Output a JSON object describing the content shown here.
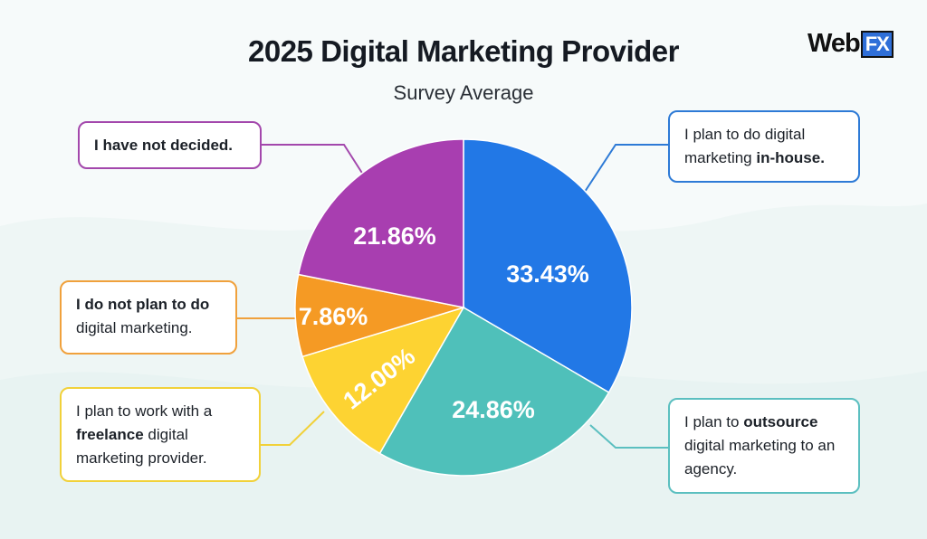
{
  "title": "2025 Digital Marketing Provider",
  "subtitle": "Survey Average",
  "logo": {
    "text_web": "Web",
    "text_fx": "FX"
  },
  "colors": {
    "background": "#f6fafa",
    "title": "#151a22"
  },
  "chart_data": {
    "type": "pie",
    "title": "2025 Digital Marketing Provider",
    "subtitle": "Survey Average",
    "slices": [
      {
        "label": "I plan to do digital marketing in-house.",
        "value": 33.43,
        "display": "33.43%",
        "color": "#2278e6"
      },
      {
        "label": "I plan to outsource digital marketing to an agency.",
        "value": 24.86,
        "display": "24.86%",
        "color": "#4fc0ba"
      },
      {
        "label": "I plan to work with a freelance digital marketing provider.",
        "value": 12.0,
        "display": "12.00%",
        "color": "#fdd332"
      },
      {
        "label": "I do not plan to do digital marketing.",
        "value": 7.86,
        "display": "7.86%",
        "color": "#f59a24"
      },
      {
        "label": "I have not decided.",
        "value": 21.86,
        "display": "21.86%",
        "color": "#a83eb0"
      }
    ]
  },
  "callouts": {
    "inhouse": {
      "pre": "I plan to do digital marketing ",
      "bold": "in-house.",
      "post": "",
      "color": "#2d7ad6"
    },
    "outsource": {
      "pre": "I plan to ",
      "bold": "outsource",
      "post": " digital marketing to an agency.",
      "color": "#5bbfc0"
    },
    "freelance": {
      "pre": "I plan to work with a ",
      "bold": "freelance",
      "post": " digital marketing provider.",
      "color": "#f1d13a"
    },
    "notplan": {
      "pre": "",
      "bold": "I do not plan to do",
      "post": " digital marketing.",
      "color": "#f0a13c"
    },
    "undecided": {
      "pre": "",
      "bold": "I have not decided.",
      "post": "",
      "color": "#a347ac"
    }
  }
}
